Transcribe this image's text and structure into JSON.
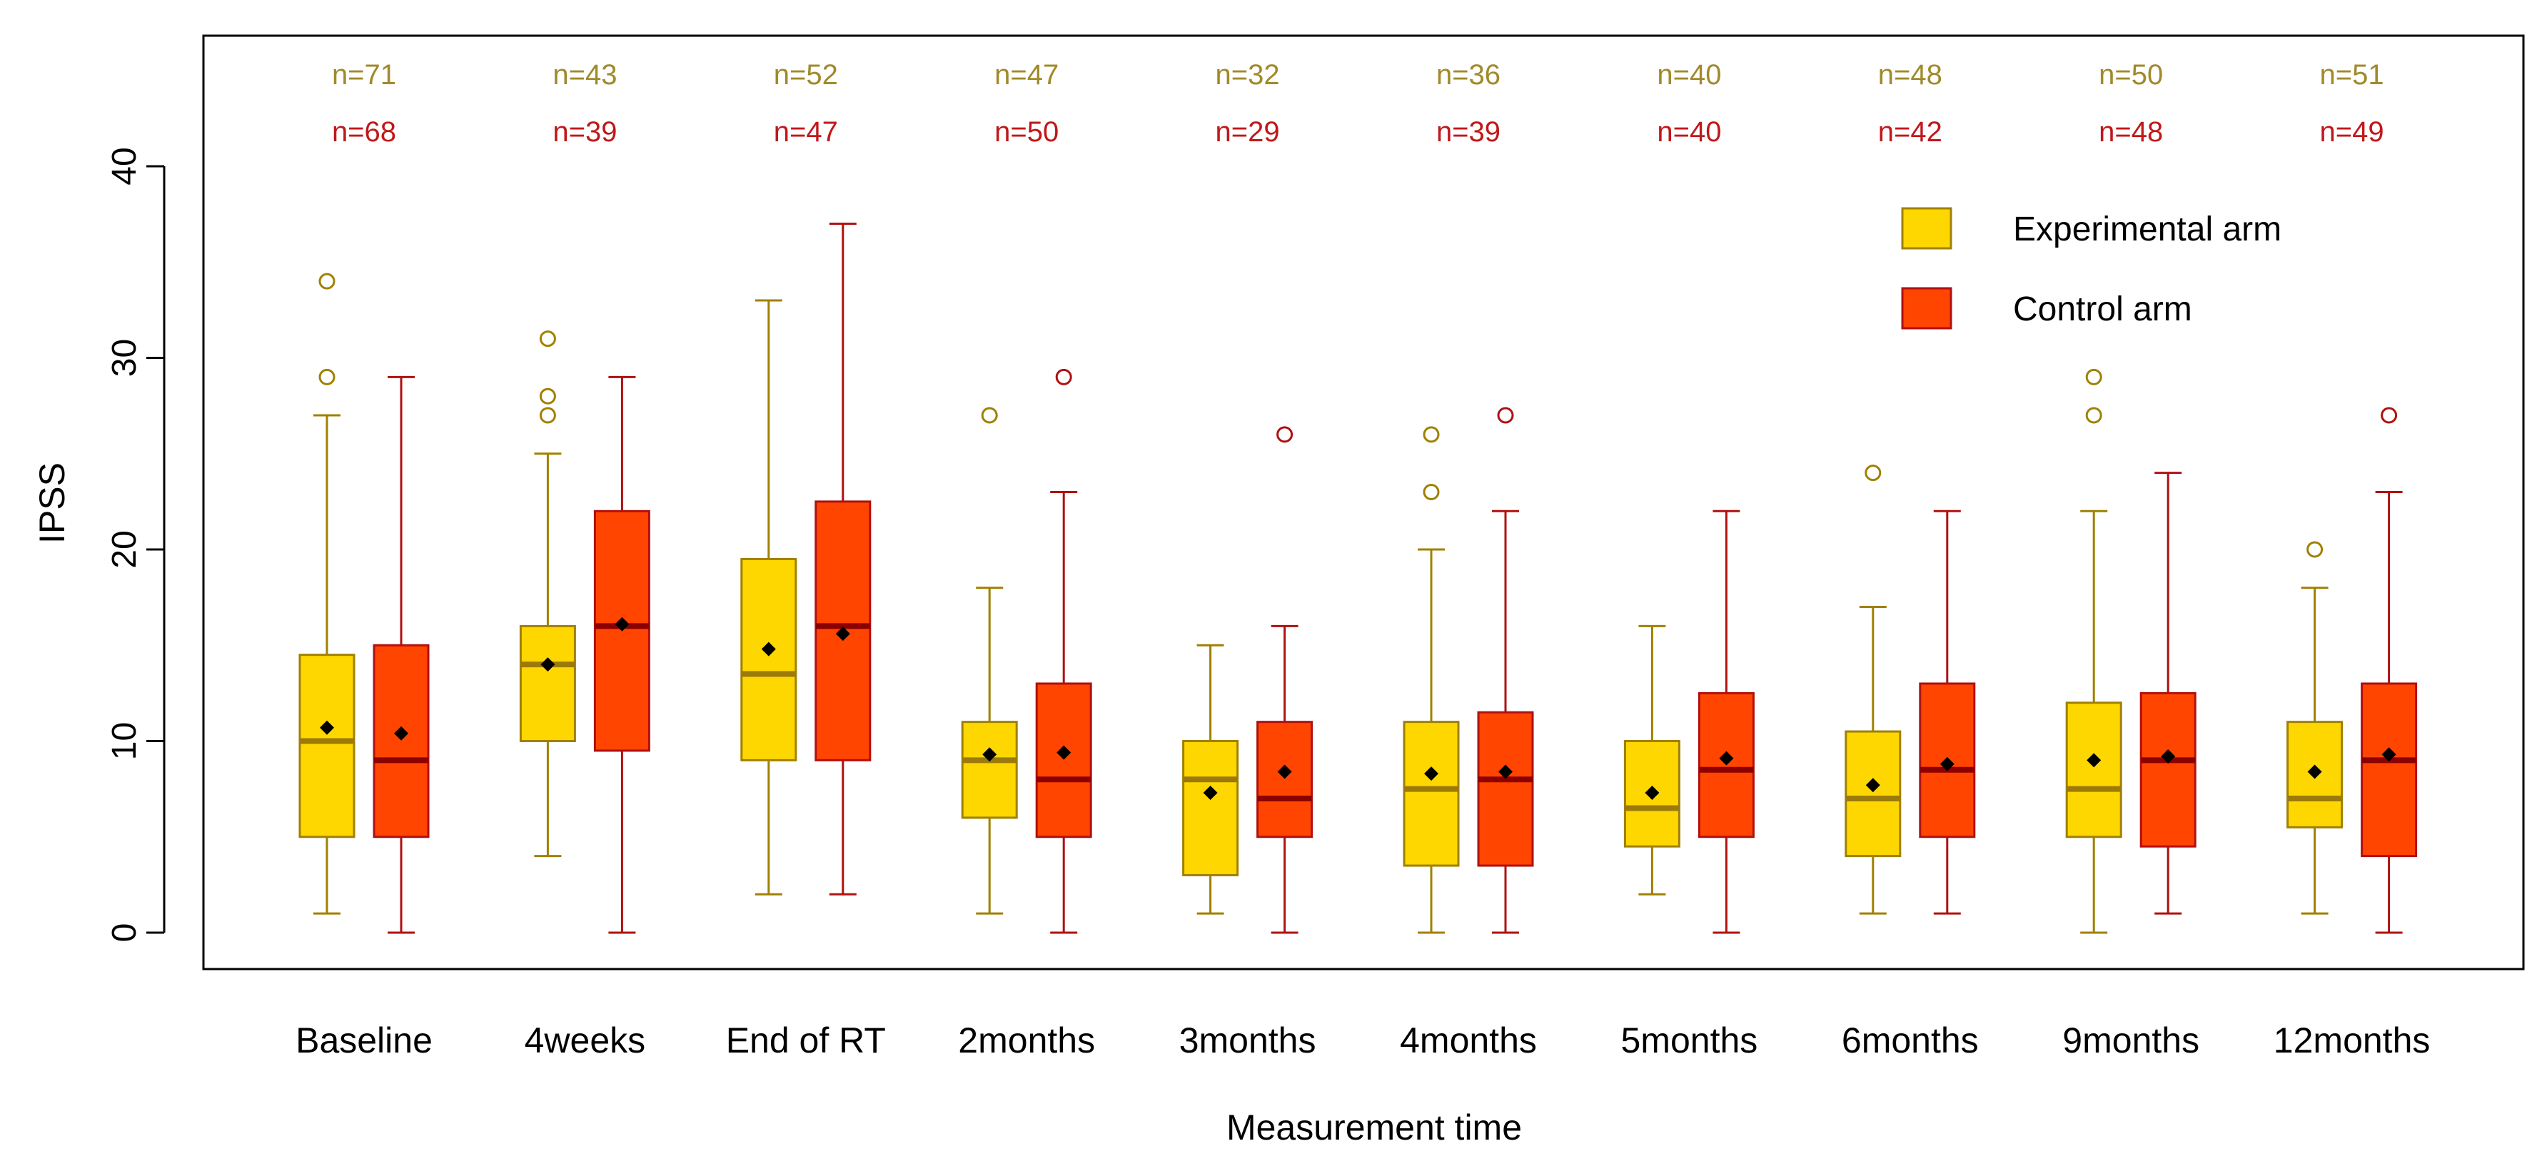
{
  "chart_data": {
    "type": "boxplot",
    "title": "",
    "xlabel": "Measurement time",
    "ylabel": "IPSS",
    "ylim": [
      0,
      45
    ],
    "yticks": [
      0,
      10,
      20,
      30,
      40
    ],
    "categories": [
      "Baseline",
      "4weeks",
      "End of RT",
      "2months",
      "3months",
      "4months",
      "5months",
      "6months",
      "9months",
      "12months"
    ],
    "legend": {
      "placement": "top-right",
      "entries": [
        {
          "label": "Experimental arm",
          "series": 0
        },
        {
          "label": "Control arm",
          "series": 1
        }
      ]
    },
    "series": [
      {
        "name": "Experimental arm",
        "fill": "#FFD700",
        "line": "#A08000",
        "median_color": "#9B7A0A",
        "n_color": "#A08A2A",
        "n_labels": [
          "n=71",
          "n=43",
          "n=52",
          "n=47",
          "n=32",
          "n=36",
          "n=40",
          "n=48",
          "n=50",
          "n=51"
        ],
        "boxes": [
          {
            "min": 1,
            "q1": 5,
            "median": 10,
            "q3": 14.5,
            "max": 27,
            "mean": 10.7,
            "outliers": [
              29,
              34
            ]
          },
          {
            "min": 4,
            "q1": 10,
            "median": 14,
            "q3": 16,
            "max": 25,
            "mean": 14.0,
            "outliers": [
              27,
              28,
              31
            ]
          },
          {
            "min": 2,
            "q1": 9,
            "median": 13.5,
            "q3": 19.5,
            "max": 33,
            "mean": 14.8,
            "outliers": []
          },
          {
            "min": 1,
            "q1": 6,
            "median": 9,
            "q3": 11,
            "max": 18,
            "mean": 9.3,
            "outliers": [
              27
            ]
          },
          {
            "min": 1,
            "q1": 3,
            "median": 8,
            "q3": 10,
            "max": 15,
            "mean": 7.3,
            "outliers": []
          },
          {
            "min": 0,
            "q1": 3.5,
            "median": 7.5,
            "q3": 11,
            "max": 20,
            "mean": 8.3,
            "outliers": [
              23,
              26
            ]
          },
          {
            "min": 2,
            "q1": 4.5,
            "median": 6.5,
            "q3": 10,
            "max": 16,
            "mean": 7.3,
            "outliers": []
          },
          {
            "min": 1,
            "q1": 4,
            "median": 7,
            "q3": 10.5,
            "max": 17,
            "mean": 7.7,
            "outliers": [
              24
            ]
          },
          {
            "min": 0,
            "q1": 5,
            "median": 7.5,
            "q3": 12,
            "max": 22,
            "mean": 9.0,
            "outliers": [
              27,
              29
            ]
          },
          {
            "min": 1,
            "q1": 5.5,
            "median": 7,
            "q3": 11,
            "max": 18,
            "mean": 8.4,
            "outliers": [
              20
            ]
          }
        ]
      },
      {
        "name": "Control arm",
        "fill": "#FF4500",
        "line": "#B01010",
        "median_color": "#8B0000",
        "n_color": "#C0181A",
        "n_labels": [
          "n=68",
          "n=39",
          "n=47",
          "n=50",
          "n=29",
          "n=39",
          "n=40",
          "n=42",
          "n=48",
          "n=49"
        ],
        "boxes": [
          {
            "min": 0,
            "q1": 5,
            "median": 9,
            "q3": 15,
            "max": 29,
            "mean": 10.4,
            "outliers": []
          },
          {
            "min": 0,
            "q1": 9.5,
            "median": 16,
            "q3": 22,
            "max": 29,
            "mean": 16.1,
            "outliers": []
          },
          {
            "min": 2,
            "q1": 9,
            "median": 16,
            "q3": 22.5,
            "max": 37,
            "mean": 15.6,
            "outliers": []
          },
          {
            "min": 0,
            "q1": 5,
            "median": 8,
            "q3": 13,
            "max": 23,
            "mean": 9.4,
            "outliers": [
              29
            ]
          },
          {
            "min": 0,
            "q1": 5,
            "median": 7,
            "q3": 11,
            "max": 16,
            "mean": 8.4,
            "outliers": [
              26
            ]
          },
          {
            "min": 0,
            "q1": 3.5,
            "median": 8,
            "q3": 11.5,
            "max": 22,
            "mean": 8.4,
            "outliers": [
              27
            ]
          },
          {
            "min": 0,
            "q1": 5,
            "median": 8.5,
            "q3": 12.5,
            "max": 22,
            "mean": 9.1,
            "outliers": []
          },
          {
            "min": 1,
            "q1": 5,
            "median": 8.5,
            "q3": 13,
            "max": 22,
            "mean": 8.8,
            "outliers": []
          },
          {
            "min": 1,
            "q1": 4.5,
            "median": 9,
            "q3": 12.5,
            "max": 24,
            "mean": 9.2,
            "outliers": []
          },
          {
            "min": 0,
            "q1": 4,
            "median": 9,
            "q3": 13,
            "max": 23,
            "mean": 9.3,
            "outliers": [
              27
            ]
          }
        ]
      }
    ]
  }
}
